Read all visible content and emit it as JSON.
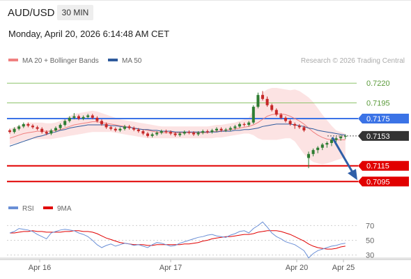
{
  "header": {
    "symbol": "AUD/USD",
    "timeframe": "30 MIN",
    "datetime": "Monday, April 20, 2026 6:14:48 AM CET"
  },
  "colors": {
    "bollinger": "#f08080",
    "ma50": "#2e5a9c",
    "bullish": "#2e7d32",
    "bearish": "#c62828",
    "resistance": "#8dc36a",
    "support": "#e10000",
    "current_line": "#3b73e6",
    "rsi": "#6a8fd6",
    "ma9": "#e10000",
    "arrow": "#2f5fa8"
  },
  "chart_data": [
    {
      "type": "candlestick",
      "legend": [
        {
          "label": "MA 20 + Bollinger Bands",
          "color": "#f08080"
        },
        {
          "label": "MA 50",
          "color": "#2e5a9c"
        }
      ],
      "watermark": "Research © 2026 Trading Central",
      "ylim": [
        0.7084,
        0.7232
      ],
      "x_ticks": [
        "Apr 16",
        "Apr 17",
        "Apr 20",
        "Apr 25"
      ],
      "candles": {
        "open": [
          0.716,
          0.7158,
          0.7162,
          0.7165,
          0.7168,
          0.7166,
          0.7164,
          0.7162,
          0.7158,
          0.7156,
          0.716,
          0.7163,
          0.7167,
          0.7172,
          0.7176,
          0.7178,
          0.7175,
          0.7177,
          0.7179,
          0.7176,
          0.7172,
          0.7168,
          0.7164,
          0.7162,
          0.716,
          0.7162,
          0.7165,
          0.7163,
          0.7161,
          0.7159,
          0.7156,
          0.7153,
          0.7155,
          0.7157,
          0.7159,
          0.7158,
          0.7156,
          0.7154,
          0.7156,
          0.7158,
          0.7157,
          0.7155,
          0.7157,
          0.7159,
          0.7158,
          0.716,
          0.7162,
          0.716,
          0.7161,
          0.7163,
          0.7165,
          0.7168,
          0.7167,
          0.717,
          0.719,
          0.7205,
          0.72,
          0.7192,
          0.7186,
          0.718,
          0.7176,
          0.7172,
          0.7168,
          0.7166,
          0.7164,
          0.7125,
          0.713,
          0.7135,
          0.7138,
          0.7142,
          0.7144,
          0.7148,
          0.715,
          0.7152
        ],
        "close": [
          0.7158,
          0.7162,
          0.7165,
          0.7168,
          0.7166,
          0.7164,
          0.7162,
          0.7158,
          0.7156,
          0.716,
          0.7163,
          0.7167,
          0.7172,
          0.7176,
          0.7178,
          0.7175,
          0.7177,
          0.7179,
          0.7176,
          0.7172,
          0.7168,
          0.7164,
          0.7162,
          0.716,
          0.7162,
          0.7165,
          0.7163,
          0.7161,
          0.7159,
          0.7156,
          0.7153,
          0.7155,
          0.7157,
          0.7159,
          0.7158,
          0.7156,
          0.7154,
          0.7156,
          0.7158,
          0.7157,
          0.7155,
          0.7157,
          0.7159,
          0.7158,
          0.716,
          0.7162,
          0.716,
          0.7161,
          0.7163,
          0.7165,
          0.7168,
          0.7167,
          0.717,
          0.719,
          0.7205,
          0.72,
          0.7192,
          0.7186,
          0.718,
          0.7176,
          0.7172,
          0.7168,
          0.7166,
          0.7164,
          0.716,
          0.713,
          0.7135,
          0.7138,
          0.7142,
          0.7144,
          0.7148,
          0.715,
          0.7152,
          0.7153
        ],
        "high": [
          0.7162,
          0.7164,
          0.7167,
          0.717,
          0.717,
          0.7168,
          0.7166,
          0.7164,
          0.716,
          0.7162,
          0.7165,
          0.7169,
          0.7174,
          0.7178,
          0.7182,
          0.718,
          0.7179,
          0.7181,
          0.7181,
          0.7178,
          0.7174,
          0.717,
          0.7166,
          0.7164,
          0.7164,
          0.7167,
          0.7167,
          0.7165,
          0.7163,
          0.7161,
          0.7158,
          0.7157,
          0.7159,
          0.7161,
          0.7161,
          0.716,
          0.7158,
          0.7158,
          0.716,
          0.716,
          0.7159,
          0.7159,
          0.7161,
          0.7161,
          0.7162,
          0.7164,
          0.7164,
          0.7163,
          0.7165,
          0.7167,
          0.717,
          0.717,
          0.7172,
          0.7192,
          0.7208,
          0.721,
          0.7203,
          0.7194,
          0.7188,
          0.7182,
          0.7178,
          0.7174,
          0.717,
          0.7168,
          0.7166,
          0.7133,
          0.7137,
          0.714,
          0.7144,
          0.7146,
          0.715,
          0.7152,
          0.7154,
          0.7155
        ],
        "low": [
          0.7156,
          0.7156,
          0.716,
          0.7163,
          0.7164,
          0.7162,
          0.716,
          0.7156,
          0.7154,
          0.7154,
          0.7158,
          0.7161,
          0.7165,
          0.717,
          0.7174,
          0.7173,
          0.7173,
          0.7175,
          0.7174,
          0.717,
          0.7166,
          0.7162,
          0.716,
          0.7158,
          0.7158,
          0.716,
          0.7161,
          0.7159,
          0.7157,
          0.7154,
          0.7151,
          0.7151,
          0.7153,
          0.7155,
          0.7156,
          0.7154,
          0.7152,
          0.7152,
          0.7154,
          0.7155,
          0.7153,
          0.7153,
          0.7155,
          0.7156,
          0.7156,
          0.7158,
          0.7158,
          0.7158,
          0.7159,
          0.7161,
          0.7163,
          0.7165,
          0.7165,
          0.7168,
          0.7188,
          0.7198,
          0.719,
          0.7184,
          0.7178,
          0.7174,
          0.717,
          0.7166,
          0.7162,
          0.7162,
          0.7158,
          0.7112,
          0.7127,
          0.7131,
          0.7135,
          0.7138,
          0.714,
          0.7145,
          0.7147,
          0.7149
        ]
      },
      "bollinger_mid": [
        0.715,
        0.7152,
        0.7154,
        0.7156,
        0.7157,
        0.7158,
        0.7159,
        0.7159,
        0.7159,
        0.7159,
        0.716,
        0.7161,
        0.7163,
        0.7165,
        0.7167,
        0.7168,
        0.7169,
        0.717,
        0.7171,
        0.7171,
        0.717,
        0.7169,
        0.7168,
        0.7167,
        0.7166,
        0.7165,
        0.7164,
        0.7163,
        0.7162,
        0.7161,
        0.716,
        0.7159,
        0.7158,
        0.7157,
        0.7157,
        0.7157,
        0.7157,
        0.7157,
        0.7157,
        0.7157,
        0.7157,
        0.7157,
        0.7157,
        0.7157,
        0.7158,
        0.7159,
        0.7159,
        0.716,
        0.7161,
        0.7162,
        0.7163,
        0.7164,
        0.7165,
        0.7167,
        0.717,
        0.7174,
        0.7178,
        0.718,
        0.7181,
        0.7181,
        0.718,
        0.7178,
        0.7175,
        0.7172,
        0.7168,
        0.7163,
        0.7158,
        0.7154,
        0.7151,
        0.7149,
        0.7148,
        0.7148,
        0.7148,
        0.7148
      ],
      "bollinger_upper": [
        0.7162,
        0.7164,
        0.7166,
        0.7168,
        0.717,
        0.717,
        0.717,
        0.717,
        0.7169,
        0.7169,
        0.717,
        0.7172,
        0.7175,
        0.7178,
        0.7181,
        0.7182,
        0.7183,
        0.7184,
        0.7185,
        0.7184,
        0.7182,
        0.718,
        0.7178,
        0.7176,
        0.7174,
        0.7173,
        0.7172,
        0.7171,
        0.717,
        0.7169,
        0.7168,
        0.7167,
        0.7166,
        0.7165,
        0.7165,
        0.7165,
        0.7165,
        0.7165,
        0.7165,
        0.7165,
        0.7165,
        0.7165,
        0.7165,
        0.7165,
        0.7166,
        0.7167,
        0.7167,
        0.7168,
        0.7169,
        0.717,
        0.7172,
        0.7174,
        0.7176,
        0.7186,
        0.7198,
        0.7208,
        0.7212,
        0.7214,
        0.7214,
        0.7213,
        0.7212,
        0.7211,
        0.7212,
        0.721,
        0.7206,
        0.7202,
        0.7196,
        0.7188,
        0.718,
        0.7173,
        0.7166,
        0.716,
        0.7158,
        0.7156
      ],
      "bollinger_lower": [
        0.7142,
        0.7143,
        0.7145,
        0.7147,
        0.7148,
        0.7149,
        0.7149,
        0.7149,
        0.7149,
        0.7149,
        0.715,
        0.7151,
        0.7152,
        0.7153,
        0.7154,
        0.7155,
        0.7156,
        0.7157,
        0.7158,
        0.7158,
        0.7158,
        0.7158,
        0.7158,
        0.7157,
        0.7156,
        0.7155,
        0.7154,
        0.7153,
        0.7152,
        0.7151,
        0.715,
        0.715,
        0.715,
        0.715,
        0.715,
        0.715,
        0.715,
        0.715,
        0.715,
        0.715,
        0.715,
        0.715,
        0.715,
        0.715,
        0.715,
        0.7151,
        0.7151,
        0.7152,
        0.7153,
        0.7154,
        0.7155,
        0.7156,
        0.7156,
        0.7154,
        0.715,
        0.7148,
        0.7148,
        0.7148,
        0.7148,
        0.7149,
        0.715,
        0.715,
        0.7146,
        0.7138,
        0.713,
        0.7124,
        0.712,
        0.7118,
        0.7117,
        0.7118,
        0.712,
        0.7122,
        0.7124,
        0.7126
      ],
      "ma50": [
        0.714,
        0.7142,
        0.7144,
        0.7146,
        0.7148,
        0.715,
        0.7152,
        0.7153,
        0.7155,
        0.7157,
        0.7158,
        0.716,
        0.7161,
        0.7163,
        0.7164,
        0.7165,
        0.7166,
        0.7167,
        0.7167,
        0.7167,
        0.7167,
        0.7167,
        0.7166,
        0.7166,
        0.7165,
        0.7164,
        0.7164,
        0.7163,
        0.7162,
        0.7161,
        0.7161,
        0.716,
        0.716,
        0.7159,
        0.7159,
        0.7159,
        0.7158,
        0.7158,
        0.7158,
        0.7158,
        0.7158,
        0.7158,
        0.7158,
        0.7158,
        0.7158,
        0.7158,
        0.7159,
        0.7159,
        0.7159,
        0.716,
        0.716,
        0.7161,
        0.7161,
        0.7162,
        0.7163,
        0.7165,
        0.7166,
        0.7167,
        0.7168,
        0.7168,
        0.7168,
        0.7168,
        0.7167,
        0.7166,
        0.7165,
        0.7163,
        0.7162,
        0.716,
        0.7159,
        0.7158,
        0.7157,
        0.7156,
        0.7155,
        0.7154
      ],
      "levels": [
        {
          "value": "0.7220",
          "type": "resistance"
        },
        {
          "value": "0.7195",
          "type": "resistance"
        },
        {
          "value": "0.7175",
          "type": "pivot"
        },
        {
          "value": "0.7153",
          "type": "current"
        },
        {
          "value": "0.7115",
          "type": "support"
        },
        {
          "value": "0.7095",
          "type": "support"
        }
      ],
      "forecast": {
        "from": 0.7153,
        "to": 0.7095,
        "direction": "down"
      }
    },
    {
      "type": "line",
      "legend": [
        {
          "label": "RSI",
          "color": "#6a8fd6"
        },
        {
          "label": "9MA",
          "color": "#e10000"
        }
      ],
      "ylim": [
        22,
        78
      ],
      "y_ticks": [
        70,
        50,
        30
      ],
      "series": [
        {
          "name": "RSI",
          "values": [
            60,
            62,
            66,
            65,
            64,
            62,
            58,
            55,
            52,
            60,
            62,
            64,
            65,
            64,
            63,
            60,
            58,
            55,
            50,
            44,
            40,
            43,
            45,
            42,
            44,
            46,
            45,
            43,
            44,
            42,
            40,
            44,
            47,
            46,
            44,
            42,
            43,
            46,
            48,
            50,
            52,
            54,
            55,
            57,
            58,
            56,
            55,
            54,
            57,
            59,
            62,
            63,
            60,
            66,
            70,
            75,
            68,
            60,
            55,
            52,
            48,
            46,
            44,
            40,
            36,
            26,
            32,
            36,
            38,
            40,
            42,
            43,
            45,
            46
          ]
        },
        {
          "name": "9MA",
          "values": [
            60,
            60,
            61,
            62,
            62,
            63,
            62,
            62,
            61,
            61,
            61,
            61,
            62,
            62,
            63,
            63,
            62,
            62,
            61,
            59,
            56,
            53,
            51,
            49,
            47,
            46,
            45,
            44,
            44,
            44,
            43,
            43,
            44,
            44,
            44,
            44,
            44,
            44,
            45,
            45,
            46,
            47,
            49,
            50,
            52,
            53,
            54,
            55,
            55,
            56,
            57,
            58,
            58,
            59,
            61,
            62,
            63,
            63,
            63,
            62,
            60,
            58,
            55,
            52,
            49,
            45,
            42,
            40,
            39,
            38,
            38,
            39,
            41,
            42
          ]
        }
      ]
    }
  ]
}
